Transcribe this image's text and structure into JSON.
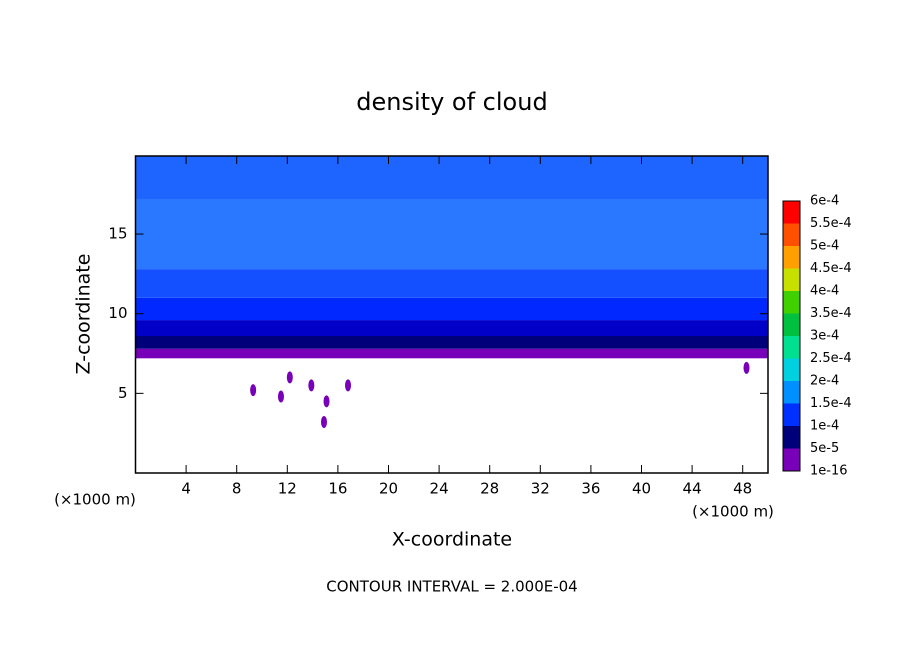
{
  "chart_data": {
    "type": "contour",
    "title": "density of cloud",
    "x_label": "X-coordinate",
    "y_label": "Z-coordinate",
    "x_unit": "(×1000 m)",
    "y_unit": "(×1000 m)",
    "footer": "CONTOUR INTERVAL = 2.000E-04",
    "xlim": [
      0,
      50
    ],
    "ylim": [
      0,
      19.9
    ],
    "xticks": [
      4,
      8,
      12,
      16,
      20,
      24,
      28,
      32,
      36,
      40,
      44,
      48
    ],
    "yticks": [
      5,
      10,
      15
    ],
    "bands": [
      {
        "zlim": [
          7.2,
          7.8
        ],
        "color": "#7800b8"
      },
      {
        "zlim": [
          7.8,
          8.6
        ],
        "color": "#00007a"
      },
      {
        "zlim": [
          8.6,
          9.6
        ],
        "color": "#0000c8"
      },
      {
        "zlim": [
          9.6,
          11
        ],
        "color": "#0028ff"
      },
      {
        "zlim": [
          11,
          12.8
        ],
        "color": "#1450ff"
      },
      {
        "zlim": [
          12.8,
          17.2
        ],
        "color": "#2a78ff"
      },
      {
        "zlim": [
          17.2,
          19.9
        ],
        "color": "#1e64ff"
      }
    ],
    "patches": {
      "color": "#7800b8",
      "x": [
        12.2,
        13.9,
        15.1,
        14.9,
        16.8,
        9.3,
        11.5,
        48.3
      ],
      "y": [
        6,
        5.5,
        4.5,
        3.2,
        5.5,
        5.2,
        4.8,
        6.6
      ]
    },
    "colorbar": {
      "levels": [
        1e-16,
        {
          "value": 5e-05,
          "label": "5e-5"
        },
        {
          "value": 0.0001,
          "label": "1e-4"
        },
        {
          "value": 0.00015,
          "label": "1.5e-4"
        },
        {
          "value": 0.0002,
          "label": "2e-4"
        },
        {
          "value": 0.00025,
          "label": "2.5e-4"
        },
        {
          "value": 0.0003,
          "label": "3e-4"
        },
        {
          "value": 0.00035,
          "label": "3.5e-4"
        },
        {
          "value": 0.0004,
          "label": "4e-4"
        },
        {
          "value": 0.00045,
          "label": "4.5e-4"
        },
        {
          "value": 0.0005,
          "label": "5e-4"
        },
        {
          "value": 0.00055,
          "label": "5.5e-4"
        },
        {
          "value": 0.0006,
          "label": "6e-4"
        }
      ],
      "colors": [
        "#7800b8",
        "#00007a",
        "#0030ff",
        "#0090ff",
        "#00d0e0",
        "#00e090",
        "#00c040",
        "#40d000",
        "#c8e000",
        "#ffa000",
        "#ff5000",
        "#ff0000",
        "#ff8080"
      ]
    }
  }
}
